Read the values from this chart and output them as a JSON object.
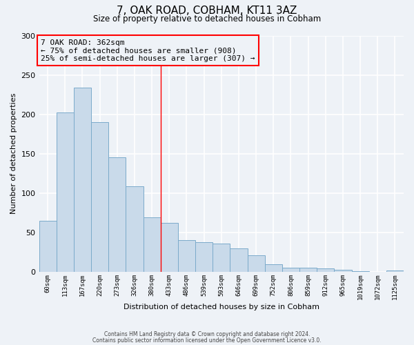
{
  "title": "7, OAK ROAD, COBHAM, KT11 3AZ",
  "subtitle": "Size of property relative to detached houses in Cobham",
  "xlabel": "Distribution of detached houses by size in Cobham",
  "ylabel": "Number of detached properties",
  "categories": [
    "60sqm",
    "113sqm",
    "167sqm",
    "220sqm",
    "273sqm",
    "326sqm",
    "380sqm",
    "433sqm",
    "486sqm",
    "539sqm",
    "593sqm",
    "646sqm",
    "699sqm",
    "752sqm",
    "806sqm",
    "859sqm",
    "912sqm",
    "965sqm",
    "1019sqm",
    "1072sqm",
    "1125sqm"
  ],
  "values": [
    65,
    202,
    234,
    190,
    145,
    109,
    69,
    62,
    40,
    38,
    36,
    30,
    21,
    10,
    5,
    5,
    4,
    3,
    1,
    0,
    2
  ],
  "bar_color": "#c9daea",
  "bar_edge_color": "#7aaaca",
  "ylim": [
    0,
    300
  ],
  "yticks": [
    0,
    50,
    100,
    150,
    200,
    250,
    300
  ],
  "red_line_x": 6.5,
  "annotation_line1": "7 OAK ROAD: 362sqm",
  "annotation_line2": "← 75% of detached houses are smaller (908)",
  "annotation_line3": "25% of semi-detached houses are larger (307) →",
  "footnote1": "Contains HM Land Registry data © Crown copyright and database right 2024.",
  "footnote2": "Contains public sector information licensed under the Open Government Licence v3.0.",
  "background_color": "#eef2f7",
  "grid_color": "#ffffff"
}
